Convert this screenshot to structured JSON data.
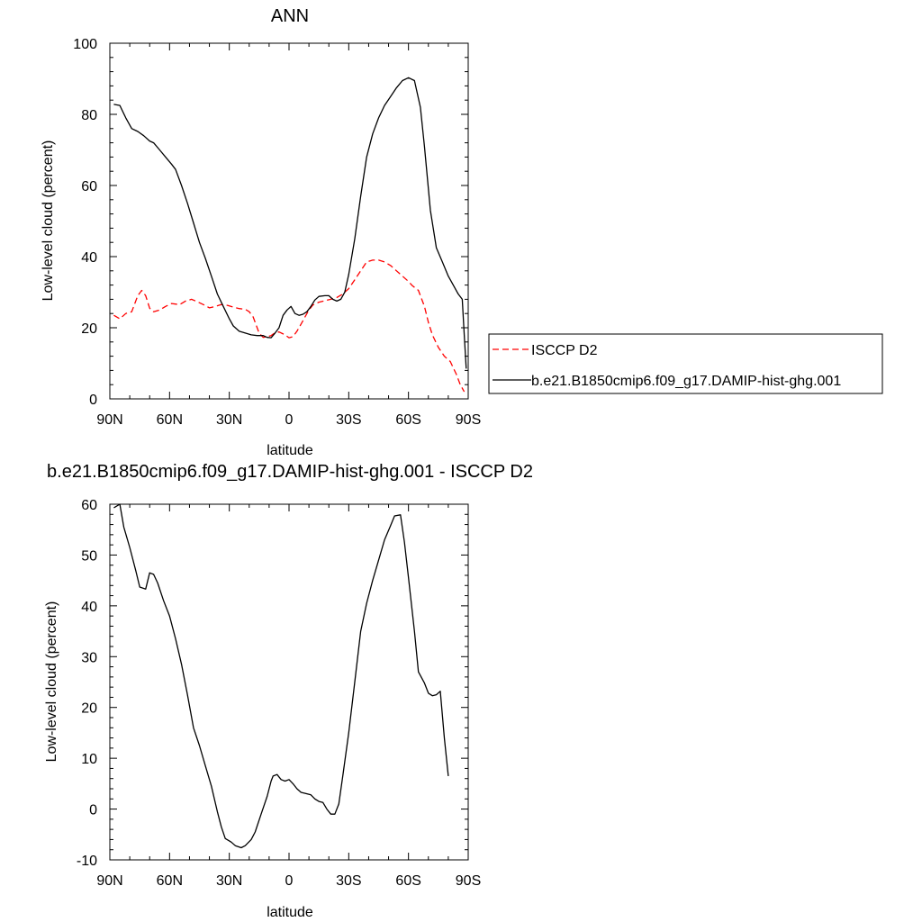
{
  "chart_data": [
    {
      "type": "line",
      "title": "ANN",
      "xlabel": "latitude",
      "ylabel": "Low-level cloud (percent)",
      "xlim": [
        -90,
        90
      ],
      "ylim": [
        0,
        100
      ],
      "x_direction": "north-to-south",
      "xticks": [
        {
          "value": 90,
          "label": "90N"
        },
        {
          "value": 60,
          "label": "60N"
        },
        {
          "value": 30,
          "label": "30N"
        },
        {
          "value": 0,
          "label": "0"
        },
        {
          "value": -30,
          "label": "30S"
        },
        {
          "value": -60,
          "label": "60S"
        },
        {
          "value": -90,
          "label": "90S"
        }
      ],
      "yticks": [
        0,
        20,
        40,
        60,
        80,
        100
      ],
      "grid": false,
      "legend_position": "right",
      "series": [
        {
          "name": "ISCCP D2",
          "color": "#ff0000",
          "style": "dashed",
          "points": [
            [
              88,
              23.5
            ],
            [
              85,
              22.5
            ],
            [
              82,
              24
            ],
            [
              79,
              24.5
            ],
            [
              76,
              29
            ],
            [
              74,
              30.5
            ],
            [
              72,
              29
            ],
            [
              70,
              25.5
            ],
            [
              68,
              24.5
            ],
            [
              65,
              25
            ],
            [
              62,
              26
            ],
            [
              59,
              26.8
            ],
            [
              55,
              26.5
            ],
            [
              52,
              27.5
            ],
            [
              49,
              28
            ],
            [
              46,
              27.3
            ],
            [
              43,
              26.5
            ],
            [
              40,
              25.6
            ],
            [
              37,
              26
            ],
            [
              34,
              26.5
            ],
            [
              31,
              26.3
            ],
            [
              28,
              25.8
            ],
            [
              25,
              25.4
            ],
            [
              22,
              25.2
            ],
            [
              20,
              24.5
            ],
            [
              18,
              23
            ],
            [
              16,
              20
            ],
            [
              15,
              18.5
            ],
            [
              13,
              17.3
            ],
            [
              11,
              17.5
            ],
            [
              9,
              17.8
            ],
            [
              7,
              18.6
            ],
            [
              5,
              18.8
            ],
            [
              2,
              18
            ],
            [
              0,
              17.2
            ],
            [
              -2,
              17.5
            ],
            [
              -4,
              19
            ],
            [
              -6,
              21
            ],
            [
              -8,
              23
            ],
            [
              -10,
              25
            ],
            [
              -12,
              26.4
            ],
            [
              -15,
              27.2
            ],
            [
              -18,
              27.6
            ],
            [
              -21,
              28
            ],
            [
              -24,
              28.5
            ],
            [
              -27,
              29.5
            ],
            [
              -30,
              31
            ],
            [
              -33,
              33.5
            ],
            [
              -36,
              36
            ],
            [
              -39,
              38.5
            ],
            [
              -42,
              39
            ],
            [
              -45,
              39
            ],
            [
              -48,
              38.5
            ],
            [
              -51,
              37.5
            ],
            [
              -54,
              36
            ],
            [
              -57,
              34.5
            ],
            [
              -60,
              33
            ],
            [
              -62,
              31.8
            ],
            [
              -65,
              30.5
            ],
            [
              -68,
              26
            ],
            [
              -70,
              21.5
            ],
            [
              -72,
              18
            ],
            [
              -75,
              14.5
            ],
            [
              -78,
              12
            ],
            [
              -81,
              10.5
            ],
            [
              -84,
              7
            ],
            [
              -86,
              4
            ],
            [
              -88,
              2
            ]
          ]
        },
        {
          "name": "b.e21.B1850cmip6.f09_g17.DAMIP-hist-ghg.001",
          "color": "#000000",
          "style": "solid",
          "points": [
            [
              88,
              82.8
            ],
            [
              85,
              82.5
            ],
            [
              82,
              79
            ],
            [
              79,
              76
            ],
            [
              76,
              75.2
            ],
            [
              73,
              74
            ],
            [
              70,
              72.5
            ],
            [
              68,
              72
            ],
            [
              65,
              70
            ],
            [
              62,
              68
            ],
            [
              59,
              66
            ],
            [
              57,
              64.5
            ],
            [
              54,
              60
            ],
            [
              51,
              55
            ],
            [
              48,
              49.5
            ],
            [
              45,
              44
            ],
            [
              42,
              39.5
            ],
            [
              39,
              34.5
            ],
            [
              36,
              29.5
            ],
            [
              33,
              26
            ],
            [
              30,
              22.5
            ],
            [
              28,
              20.5
            ],
            [
              25,
              19
            ],
            [
              22,
              18.5
            ],
            [
              19,
              18
            ],
            [
              16,
              17.8
            ],
            [
              13,
              17.8
            ],
            [
              11,
              17.3
            ],
            [
              9,
              17.2
            ],
            [
              7,
              18.5
            ],
            [
              5,
              20
            ],
            [
              3,
              23.5
            ],
            [
              1,
              25
            ],
            [
              -1,
              26
            ],
            [
              -3,
              24
            ],
            [
              -5,
              23.5
            ],
            [
              -7,
              23.8
            ],
            [
              -9,
              24.5
            ],
            [
              -11,
              26
            ],
            [
              -13,
              27.8
            ],
            [
              -15,
              28.8
            ],
            [
              -18,
              29
            ],
            [
              -20,
              29
            ],
            [
              -22,
              28
            ],
            [
              -24,
              27.5
            ],
            [
              -26,
              28
            ],
            [
              -28,
              30
            ],
            [
              -30,
              35
            ],
            [
              -33,
              45
            ],
            [
              -36,
              57
            ],
            [
              -39,
              68
            ],
            [
              -42,
              74.5
            ],
            [
              -45,
              79
            ],
            [
              -48,
              82.5
            ],
            [
              -51,
              85
            ],
            [
              -54,
              87.5
            ],
            [
              -57,
              89.5
            ],
            [
              -60,
              90.3
            ],
            [
              -63,
              89.5
            ],
            [
              -66,
              82
            ],
            [
              -68,
              71
            ],
            [
              -71,
              53
            ],
            [
              -74,
              42.5
            ],
            [
              -77,
              38.5
            ],
            [
              -80,
              34.5
            ],
            [
              -83,
              31.5
            ],
            [
              -85,
              29.5
            ],
            [
              -87,
              28
            ],
            [
              -88,
              18
            ],
            [
              -89,
              8.5
            ]
          ]
        }
      ]
    },
    {
      "type": "line",
      "title": "b.e21.B1850cmip6.f09_g17.DAMIP-hist-ghg.001 - ISCCP D2",
      "xlabel": "latitude",
      "ylabel": "Low-level cloud (percent)",
      "xlim": [
        -90,
        90
      ],
      "ylim": [
        -10,
        60
      ],
      "x_direction": "north-to-south",
      "xticks": [
        {
          "value": 90,
          "label": "90N"
        },
        {
          "value": 60,
          "label": "60N"
        },
        {
          "value": 30,
          "label": "30N"
        },
        {
          "value": 0,
          "label": "0"
        },
        {
          "value": -30,
          "label": "30S"
        },
        {
          "value": -60,
          "label": "60S"
        },
        {
          "value": -90,
          "label": "90S"
        }
      ],
      "yticks": [
        -10,
        0,
        10,
        20,
        30,
        40,
        50,
        60
      ],
      "grid": false,
      "series": [
        {
          "color": "#000000",
          "style": "solid",
          "points": [
            [
              88,
              59.3
            ],
            [
              85,
              60
            ],
            [
              83,
              55.5
            ],
            [
              80,
              51.5
            ],
            [
              77,
              47
            ],
            [
              75,
              43.7
            ],
            [
              72,
              43.3
            ],
            [
              70,
              46.5
            ],
            [
              68,
              46.2
            ],
            [
              66,
              44.5
            ],
            [
              63,
              41
            ],
            [
              60,
              38
            ],
            [
              57,
              33.5
            ],
            [
              54,
              28.5
            ],
            [
              51,
              22.5
            ],
            [
              48,
              16
            ],
            [
              45,
              12.5
            ],
            [
              42,
              8.5
            ],
            [
              39,
              4.5
            ],
            [
              36,
              -0.5
            ],
            [
              34,
              -3.5
            ],
            [
              32,
              -5.8
            ],
            [
              29,
              -6.5
            ],
            [
              27,
              -7.2
            ],
            [
              24,
              -7.6
            ],
            [
              22,
              -7.2
            ],
            [
              19,
              -6
            ],
            [
              17,
              -4.5
            ],
            [
              14,
              -1
            ],
            [
              11,
              2.5
            ],
            [
              9,
              5.5
            ],
            [
              8,
              6.5
            ],
            [
              6,
              6.8
            ],
            [
              4,
              5.8
            ],
            [
              2,
              5.5
            ],
            [
              0,
              5.8
            ],
            [
              -2,
              5
            ],
            [
              -4,
              4
            ],
            [
              -6,
              3.3
            ],
            [
              -9,
              3
            ],
            [
              -11,
              2.8
            ],
            [
              -13,
              2
            ],
            [
              -15,
              1.5
            ],
            [
              -17,
              1.3
            ],
            [
              -19,
              0
            ],
            [
              -21,
              -1
            ],
            [
              -23,
              -1
            ],
            [
              -25,
              1
            ],
            [
              -27,
              6.5
            ],
            [
              -30,
              15
            ],
            [
              -33,
              25
            ],
            [
              -36,
              35
            ],
            [
              -39,
              40.5
            ],
            [
              -42,
              45
            ],
            [
              -45,
              49
            ],
            [
              -48,
              53
            ],
            [
              -51,
              55.8
            ],
            [
              -53,
              57.7
            ],
            [
              -56,
              57.9
            ],
            [
              -58,
              52.5
            ],
            [
              -60,
              45.5
            ],
            [
              -63,
              35
            ],
            [
              -65,
              27
            ],
            [
              -68,
              24.8
            ],
            [
              -70,
              22.8
            ],
            [
              -72,
              22.3
            ],
            [
              -74,
              22.5
            ],
            [
              -76,
              23.2
            ],
            [
              -78,
              14
            ],
            [
              -80,
              6.5
            ]
          ]
        }
      ]
    }
  ]
}
